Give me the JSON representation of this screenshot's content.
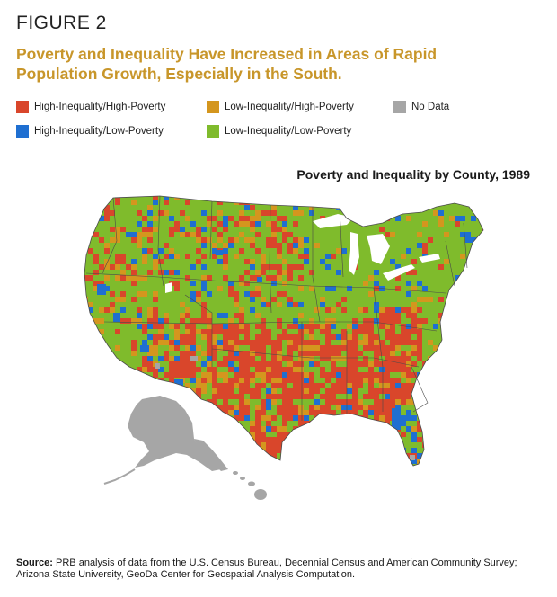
{
  "figure": {
    "label": "FIGURE 2",
    "title": "Poverty and Inequality Have Increased in Areas of Rapid Population Growth, Especially in the South."
  },
  "legend": {
    "items": [
      {
        "label": "High-Inequality/High-Poverty",
        "color": "#d9462b"
      },
      {
        "label": "Low-Inequality/High-Poverty",
        "color": "#d4961e"
      },
      {
        "label": "No Data",
        "color": "#a6a6a6"
      },
      {
        "label": "High-Inequality/Low-Poverty",
        "color": "#1f6fd1"
      },
      {
        "label": "Low-Inequality/Low-Poverty",
        "color": "#7fbb2c"
      }
    ]
  },
  "map": {
    "title": "Poverty and Inequality by County, 1989",
    "colors": {
      "high_high": "#d9462b",
      "low_high": "#d4961e",
      "no_data": "#a6a6a6",
      "high_low": "#1f6fd1",
      "low_low": "#7fbb2c",
      "lakes": "#ffffff",
      "borders": "#4a4a4a"
    }
  },
  "source": {
    "label": "Source:",
    "text": "PRB analysis of data from the U.S. Census Bureau, Decennial Census and American Community Survey; Arizona State University, GeoDa Center for Geospatial Analysis Computation."
  }
}
